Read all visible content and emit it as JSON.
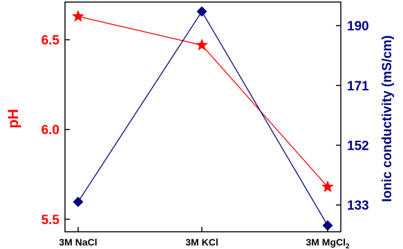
{
  "chart_data": {
    "type": "line",
    "categories": [
      "3M NaCl",
      "3M KCl",
      "3M MgCl"
    ],
    "category_subscripts": [
      "",
      "",
      "2"
    ],
    "series": [
      {
        "axis": "left",
        "color": "#ff0000",
        "marker": "star",
        "values": [
          6.63,
          6.47,
          5.68
        ]
      },
      {
        "axis": "right",
        "color": "#000080",
        "marker": "diamond",
        "values": [
          134,
          194.5,
          126.5
        ]
      }
    ],
    "y_left": {
      "label": "pH",
      "color": "#ff0000",
      "ticks": [
        5.5,
        6.0,
        6.5
      ],
      "tick_labels": [
        "5.5",
        "6.0",
        "6.5"
      ],
      "range": [
        5.43,
        6.71
      ]
    },
    "y_right": {
      "label": "Ionic conductivity (mS/cm)",
      "color": "#000080",
      "ticks": [
        133,
        152,
        171,
        190
      ],
      "tick_labels": [
        "133",
        "152",
        "171",
        "190"
      ],
      "range": [
        124.5,
        197.5
      ]
    },
    "grid": false,
    "legend": "none"
  }
}
